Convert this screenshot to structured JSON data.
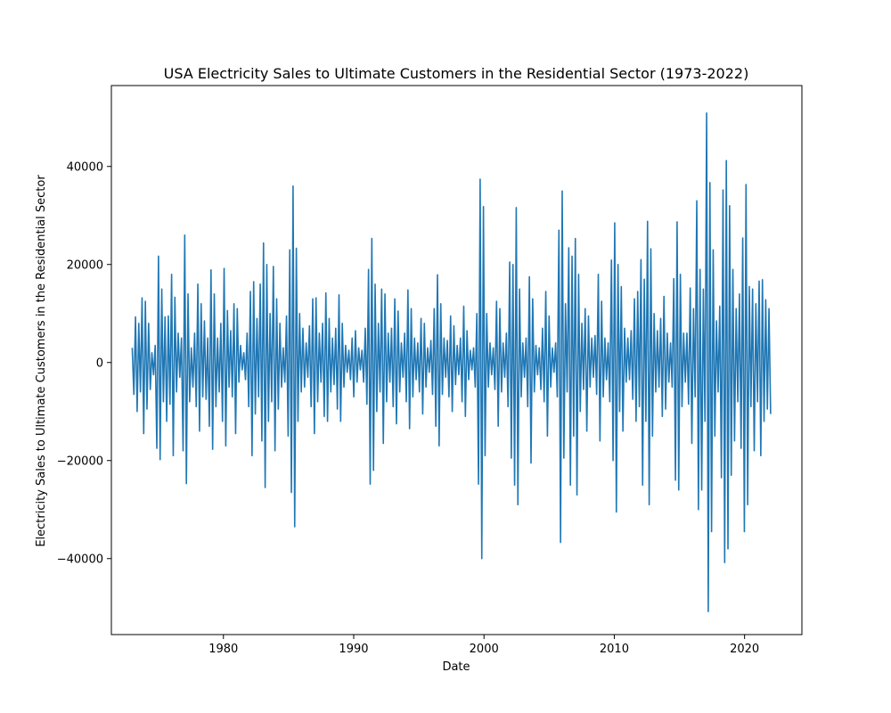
{
  "chart_data": {
    "type": "line",
    "title": "USA Electricity Sales to Ultimate Customers in the Residential Sector (1973-2022)",
    "xlabel": "Date",
    "ylabel": "Electricity Sales to Ultimate Customers in the Residential Sector",
    "xlim": [
      1971.4,
      2024.4
    ],
    "ylim": [
      -55500,
      56500
    ],
    "xticks": [
      1980,
      1990,
      2000,
      2010,
      2020
    ],
    "xtick_labels": [
      "1980",
      "1990",
      "2000",
      "2010",
      "2020"
    ],
    "yticks": [
      -40000,
      -20000,
      0,
      20000,
      40000
    ],
    "ytick_labels": [
      "−40000",
      "−20000",
      "0",
      "20000",
      "40000"
    ],
    "grid": false,
    "line_color": "#1f77b4",
    "x_start": 1973.0,
    "x_end": 2022.0,
    "series": [
      {
        "values": [
          3000,
          -6500,
          9300,
          -10000,
          8000,
          -6000,
          13200,
          -14500,
          12500,
          -9500,
          8000,
          -5500,
          2000,
          -2500,
          3500,
          -17500,
          21700,
          -19800,
          15000,
          -8000,
          9300,
          -12000,
          9500,
          -8500,
          18000,
          -19000,
          13300,
          -6000,
          6000,
          -3000,
          5000,
          -18000,
          26000,
          -24700,
          14000,
          -8000,
          3000,
          -5000,
          6000,
          -9000,
          16000,
          -14000,
          12000,
          -7000,
          8500,
          -7500,
          5000,
          -13000,
          18900,
          -17700,
          14000,
          -9000,
          5000,
          -6000,
          8000,
          -12000,
          19200,
          -17000,
          10600,
          -5000,
          6500,
          -7000,
          12000,
          -14500,
          11000,
          -4000,
          3500,
          -1500,
          2000,
          -3500,
          6000,
          -9000,
          14500,
          -19000,
          16500,
          -10500,
          9000,
          -7000,
          16000,
          -16000,
          24400,
          -25500,
          20000,
          -12000,
          10000,
          -8000,
          19600,
          -18000,
          13000,
          -9500,
          8000,
          -5000,
          3000,
          -4000,
          9500,
          -15000,
          23000,
          -26500,
          36000,
          -33500,
          23300,
          -12000,
          10000,
          -6000,
          7000,
          -5000,
          4000,
          -3000,
          7500,
          -9000,
          13000,
          -14500,
          13200,
          -8000,
          6000,
          -4000,
          8000,
          -11000,
          14200,
          -12000,
          9000,
          -6000,
          5000,
          -4500,
          7000,
          -9500,
          13800,
          -12000,
          8000,
          -5000,
          3500,
          -2000,
          2500,
          -3500,
          5000,
          -7000,
          6500,
          -4000,
          3000,
          -1500,
          2500,
          -4000,
          7000,
          -8500,
          19000,
          -24800,
          25300,
          -22000,
          16000,
          -10000,
          8000,
          -6000,
          15000,
          -16500,
          14000,
          -8000,
          6000,
          -4000,
          7000,
          -9000,
          13000,
          -12500,
          10500,
          -6000,
          4000,
          -3000,
          6000,
          -8000,
          14800,
          -13500,
          11000,
          -7000,
          5000,
          -3500,
          4000,
          -6000,
          9000,
          -10500,
          8000,
          -5000,
          3000,
          -2000,
          4500,
          -6500,
          11000,
          -13000,
          17900,
          -17000,
          12000,
          -6500,
          5000,
          -3000,
          4500,
          -7000,
          9500,
          -10000,
          7500,
          -4500,
          3500,
          -2500,
          5000,
          -8000,
          11500,
          -11000,
          6500,
          -3500,
          2500,
          -1500,
          3000,
          -5000,
          10000,
          -24800,
          37400,
          -40000,
          31800,
          -19000,
          10000,
          -5000,
          4000,
          -2500,
          3000,
          -5500,
          12500,
          -13000,
          11000,
          -6000,
          4000,
          -3000,
          6000,
          -9000,
          20500,
          -19500,
          20000,
          -25000,
          31600,
          -29000,
          15000,
          -7000,
          4000,
          -3000,
          5000,
          -9000,
          17500,
          -20500,
          13000,
          -6000,
          3500,
          -2500,
          3000,
          -5500,
          7000,
          -8000,
          14500,
          -15000,
          9500,
          -5000,
          3000,
          -2000,
          4000,
          -7000,
          27000,
          -36700,
          35000,
          -19500,
          12000,
          -6000,
          23400,
          -25000,
          21700,
          -15000,
          25300,
          -27000,
          18000,
          -10000,
          8000,
          -5500,
          11000,
          -14000,
          9500,
          -5000,
          5000,
          -3000,
          5500,
          -6500,
          18000,
          -16000,
          12500,
          -7000,
          5000,
          -3500,
          4000,
          -8000,
          20900,
          -20000,
          28500,
          -30500,
          20000,
          -10000,
          15500,
          -14000,
          7000,
          -4000,
          5000,
          -3500,
          6500,
          -7500,
          13000,
          -12000,
          14500,
          -9000,
          21000,
          -25000,
          17000,
          -12000,
          28800,
          -29000,
          23200,
          -15000,
          10000,
          -6000,
          6500,
          -5000,
          9000,
          -11000,
          13500,
          -9500,
          6000,
          -4000,
          4000,
          -5000,
          17100,
          -24000,
          28700,
          -26000,
          18000,
          -9000,
          6000,
          -4000,
          6000,
          -8500,
          15200,
          -16500,
          11000,
          -7000,
          33000,
          -30000,
          19000,
          -26000,
          15000,
          -12000,
          50900,
          -50800,
          36700,
          -34500,
          23000,
          -15000,
          8500,
          -6000,
          11500,
          -23500,
          35200,
          -40800,
          41200,
          -38000,
          32000,
          -23000,
          19000,
          -16000,
          11000,
          -8000,
          14000,
          -17500,
          25400,
          -34500,
          36300,
          -29000,
          15500,
          -9000,
          15000,
          -18000,
          12000,
          -8000,
          16600,
          -19000,
          16900,
          -12000,
          12800,
          -9500,
          11000,
          -10500
        ]
      }
    ]
  }
}
